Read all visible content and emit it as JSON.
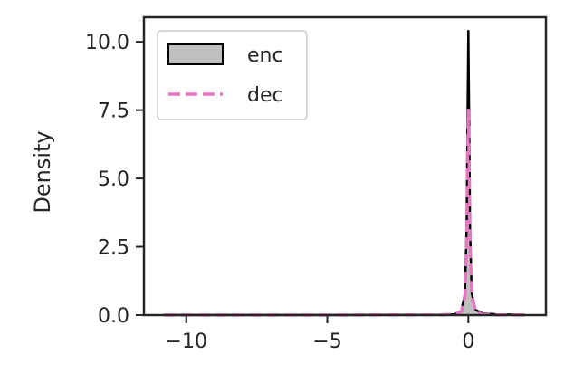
{
  "chart_data": {
    "type": "area",
    "title": "",
    "xlabel": "",
    "ylabel": "Density",
    "xlim": [
      -11.5,
      2.75
    ],
    "ylim": [
      0,
      10.9
    ],
    "xticks": [
      {
        "value": -10,
        "label": "−10"
      },
      {
        "value": -5,
        "label": "−5"
      },
      {
        "value": 0,
        "label": "0"
      }
    ],
    "yticks": [
      {
        "value": 0,
        "label": "0.0"
      },
      {
        "value": 2.5,
        "label": "2.5"
      },
      {
        "value": 5,
        "label": "5.0"
      },
      {
        "value": 7.5,
        "label": "7.5"
      },
      {
        "value": 10,
        "label": "10.0"
      }
    ],
    "grid": false,
    "legend_position": "top-left",
    "series": [
      {
        "name": "enc",
        "style": "filled",
        "fill_color": "#bfbfbf",
        "line_color": "#000000",
        "x": [
          -10.8,
          -5,
          -1,
          -0.5,
          -0.25,
          -0.12,
          -0.06,
          -0.03,
          0,
          0.03,
          0.06,
          0.12,
          0.25,
          0.5,
          1,
          2
        ],
        "y": [
          0.005,
          0.005,
          0.01,
          0.03,
          0.15,
          0.8,
          3.2,
          7.0,
          10.4,
          7.0,
          3.2,
          0.8,
          0.2,
          0.06,
          0.03,
          0.01
        ]
      },
      {
        "name": "dec",
        "style": "dashed",
        "line_color": "#e377c2",
        "x": [
          -10.8,
          -5,
          -1,
          -0.5,
          -0.25,
          -0.12,
          -0.06,
          -0.03,
          0,
          0.03,
          0.06,
          0.12,
          0.25,
          0.5,
          1,
          2
        ],
        "y": [
          0.005,
          0.005,
          0.01,
          0.03,
          0.12,
          0.7,
          2.6,
          5.5,
          7.5,
          5.5,
          2.6,
          0.7,
          0.12,
          0.03,
          0.01,
          0.005
        ]
      }
    ]
  }
}
